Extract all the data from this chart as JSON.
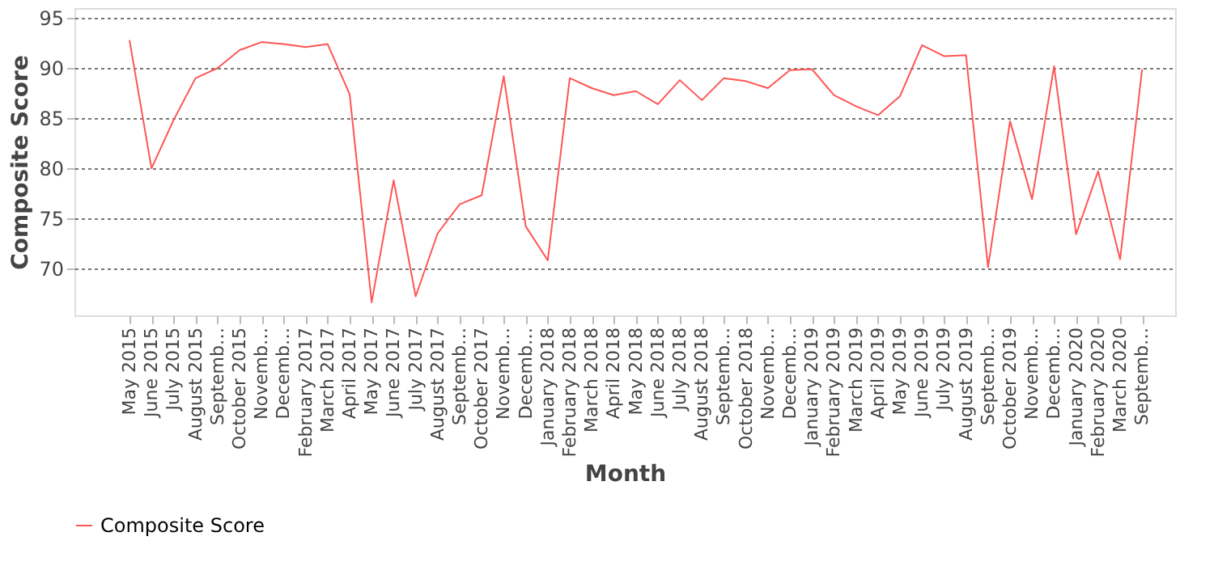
{
  "chart_data": {
    "type": "line",
    "xlabel": "Month",
    "ylabel": "Composite Score",
    "categories": [
      "May 2015",
      "June 2015",
      "July 2015",
      "August 2015",
      "Septemb…",
      "October 2015",
      "Novemb…",
      "Decemb…",
      "February 2017",
      "March 2017",
      "April 2017",
      "May 2017",
      "June 2017",
      "July 2017",
      "August 2017",
      "Septemb…",
      "October 2017",
      "Novemb…",
      "Decemb…",
      "January 2018",
      "February 2018",
      "March 2018",
      "April 2018",
      "May 2018",
      "June 2018",
      "July 2018",
      "August 2018",
      "Septemb…",
      "October 2018",
      "Novemb…",
      "Decemb…",
      "January 2019",
      "February 2019",
      "March 2019",
      "April 2019",
      "May 2019",
      "June 2019",
      "July 2019",
      "August 2019",
      "Septemb…",
      "October 2019",
      "Novemb…",
      "Decemb…",
      "January 2020",
      "February 2020",
      "March 2020",
      "Septemb…"
    ],
    "series": [
      {
        "name": "Composite Score",
        "color": "#ff5555",
        "values": [
          92.8,
          80.0,
          84.8,
          89.0,
          90.0,
          91.8,
          92.6,
          92.4,
          92.1,
          92.4,
          87.4,
          66.6,
          78.8,
          67.2,
          73.5,
          76.4,
          77.3,
          89.2,
          74.2,
          70.8,
          89.0,
          88.0,
          87.3,
          87.7,
          86.4,
          88.8,
          86.8,
          89.0,
          88.7,
          88.0,
          89.8,
          89.9,
          87.3,
          86.2,
          85.3,
          87.2,
          92.3,
          91.2,
          91.3,
          70.1,
          84.7,
          76.9,
          90.2,
          73.4,
          79.7,
          70.9,
          89.9
        ]
      }
    ],
    "ylim": [
      65.3,
      96.0
    ],
    "yticks": [
      70,
      75,
      80,
      85,
      90,
      95
    ],
    "grid": "y",
    "legend": "bottom",
    "marker": "none",
    "line_style": "solid"
  }
}
